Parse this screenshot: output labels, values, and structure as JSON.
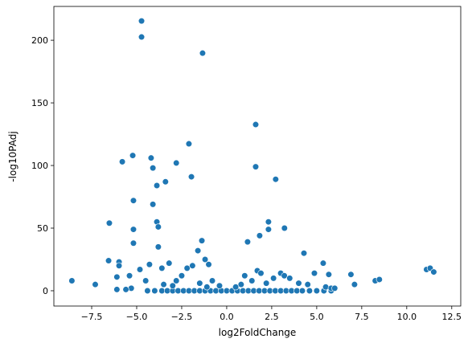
{
  "chart_data": {
    "type": "scatter",
    "xlabel": "log2FoldChange",
    "ylabel": "-log10PAdj",
    "color": "#1f77b4",
    "xlim": [
      -9.6,
      13.0
    ],
    "ylim": [
      -12.2,
      227
    ],
    "xticks": [
      {
        "value": -7.5,
        "label": "−7.5"
      },
      {
        "value": -5,
        "label": "−5.0"
      },
      {
        "value": -2.5,
        "label": "−2.5"
      },
      {
        "value": 0,
        "label": "0.0"
      },
      {
        "value": 2.5,
        "label": "2.5"
      },
      {
        "value": 5,
        "label": "5.0"
      },
      {
        "value": 7.5,
        "label": "7.5"
      },
      {
        "value": 10,
        "label": "10.0"
      },
      {
        "value": 12.5,
        "label": "12.5"
      }
    ],
    "yticks": [
      0,
      50,
      100,
      150,
      200
    ],
    "x": [
      -4.73,
      -4.73,
      -1.34,
      1.61,
      -2.1,
      -5.8,
      -5.22,
      -4.2,
      -4.1,
      -2.8,
      -3.4,
      -1.96,
      -3.88,
      -5.18,
      -4.1,
      1.61,
      2.72,
      -3.88,
      -3.8,
      -6.52,
      -5.18,
      -5.18,
      -3.8,
      2.32,
      2.32,
      3.21,
      1.83,
      1.16,
      -1.38,
      -1.6,
      -6.56,
      -5.98,
      -5.98,
      -4.29,
      -4.82,
      -5.4,
      -6.1,
      -8.6,
      -7.3,
      4.29,
      5.36,
      6.9,
      8.25,
      8.48,
      11.1,
      11.3,
      11.5,
      7.1,
      5.67,
      4.87,
      -4.4,
      -4.0,
      -3.6,
      -3.3,
      -3.0,
      -2.7,
      -2.4,
      -2.1,
      -1.8,
      -1.5,
      -1.2,
      -0.9,
      -0.6,
      -0.3,
      0,
      0.3,
      0.6,
      0.9,
      1.2,
      1.5,
      1.8,
      2.1,
      2.4,
      2.7,
      3.0,
      3.3,
      3.6,
      3.9,
      4.2,
      4.6,
      5.0,
      5.4,
      5.8,
      -3.6,
      -3.2,
      -2.5,
      -2.2,
      -1.9,
      -1.0,
      -1.2,
      -0.8,
      -1.5,
      -2.8,
      -3.5,
      1.0,
      1.4,
      1.7,
      1.9,
      2.2,
      2.6,
      3.0,
      3.2,
      3.5,
      4.0,
      4.5,
      5.5,
      5.8,
      6.0,
      -5.3,
      -5.6,
      -6.1,
      -4.5,
      -3.0,
      0.5,
      0.8,
      -0.4,
      -1.1
    ],
    "y": [
      215.4,
      202.6,
      189.7,
      132.7,
      117.3,
      103,
      108,
      106,
      98,
      102,
      87,
      91,
      84,
      72,
      69,
      99,
      89,
      55,
      51,
      54,
      49,
      38,
      35,
      55,
      49,
      50,
      44,
      39,
      40,
      32,
      24,
      23,
      20,
      21,
      17,
      12,
      11,
      8,
      5,
      30,
      22,
      13,
      8,
      9,
      17,
      18,
      15,
      5,
      13,
      14,
      0,
      0,
      0,
      0,
      0,
      0,
      0,
      0,
      0,
      0,
      0,
      0,
      0,
      0,
      0,
      0,
      0,
      0,
      0,
      0,
      0,
      0,
      0,
      0,
      0,
      0,
      0,
      0,
      0,
      0,
      0,
      0,
      0,
      18,
      22,
      12,
      18,
      20,
      21,
      25,
      8,
      6,
      8,
      5,
      12,
      8,
      16,
      14,
      6,
      10,
      14,
      12,
      10,
      6,
      5,
      3,
      2,
      2,
      2,
      1,
      1,
      8,
      4,
      3,
      5,
      4,
      3
    ]
  }
}
